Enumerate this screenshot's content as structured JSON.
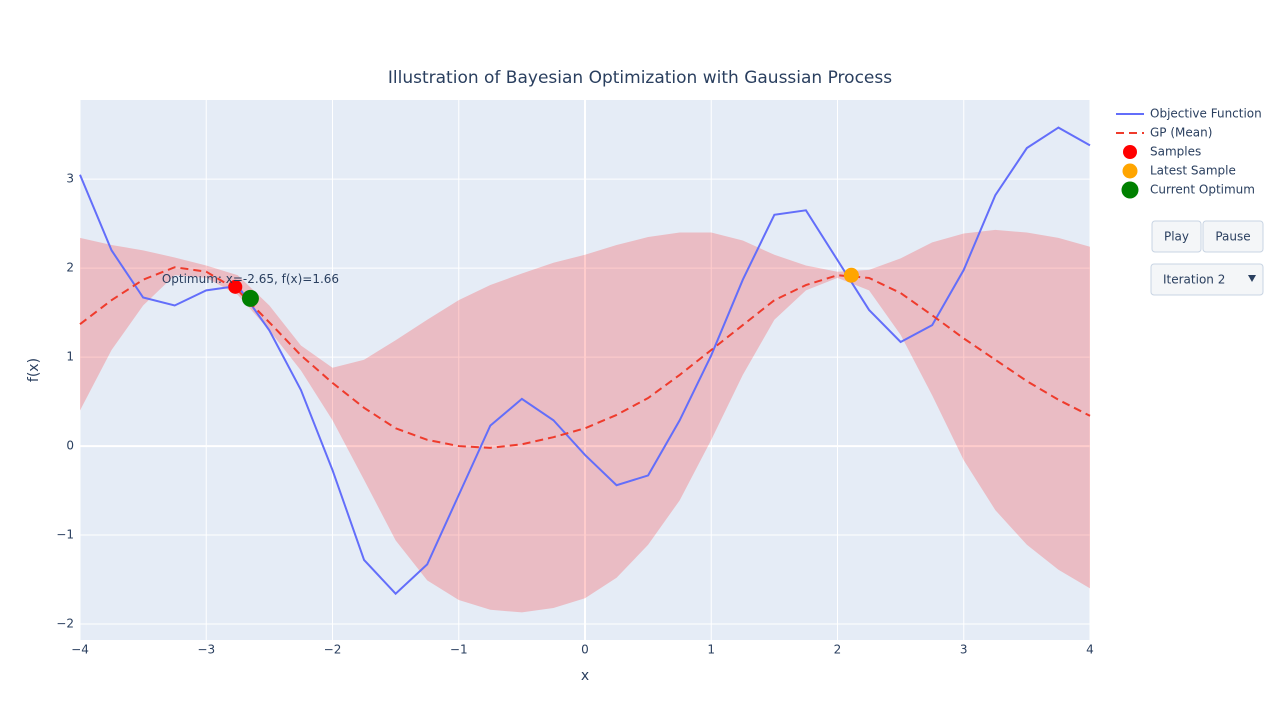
{
  "chart_data": {
    "type": "line",
    "title": "Illustration of Bayesian Optimization with Gaussian Process",
    "x_label": "x",
    "y_label": "f(x)",
    "x": [
      -4,
      -3.75,
      -3.5,
      -3.25,
      -3,
      -2.75,
      -2.5,
      -2.25,
      -2,
      -1.75,
      -1.5,
      -1.25,
      -1,
      -0.75,
      -0.5,
      -0.25,
      0,
      0.25,
      0.5,
      0.75,
      1,
      1.25,
      1.5,
      1.75,
      2,
      2.25,
      2.5,
      2.75,
      3,
      3.25,
      3.5,
      3.75,
      4
    ],
    "xlim": [
      -4,
      4
    ],
    "ylim": [
      -2.18,
      3.89
    ],
    "xticks": [
      {
        "value": -4,
        "label": "−4"
      },
      {
        "value": -3,
        "label": "−3"
      },
      {
        "value": -2,
        "label": "−2"
      },
      {
        "value": -1,
        "label": "−1"
      },
      0,
      1,
      2,
      3,
      4
    ],
    "yticks": [
      {
        "value": -2,
        "label": "−2"
      },
      {
        "value": -1,
        "label": "−1"
      },
      0,
      1,
      2,
      3
    ],
    "grid": true,
    "legend": "right",
    "band": {
      "color": "rgba(255,0,0,0.2)",
      "upper": [
        2.34,
        2.26,
        2.2,
        2.12,
        2.03,
        1.92,
        1.58,
        1.13,
        0.88,
        0.97,
        1.19,
        1.42,
        1.64,
        1.81,
        1.94,
        2.06,
        2.15,
        2.26,
        2.35,
        2.4,
        2.4,
        2.31,
        2.15,
        2.03,
        1.96,
        1.98,
        2.11,
        2.29,
        2.39,
        2.43,
        2.4,
        2.34,
        2.24
      ],
      "lower": [
        0.4,
        1.08,
        1.58,
        1.92,
        1.89,
        1.7,
        1.3,
        0.85,
        0.29,
        -0.38,
        -1.06,
        -1.51,
        -1.73,
        -1.84,
        -1.87,
        -1.82,
        -1.71,
        -1.48,
        -1.11,
        -0.61,
        0.07,
        0.8,
        1.42,
        1.75,
        1.89,
        1.75,
        1.25,
        0.57,
        -0.16,
        -0.72,
        -1.11,
        -1.39,
        -1.6
      ]
    },
    "series": [
      {
        "name": "Objective Function",
        "color": "#636efa",
        "dash": "solid",
        "values": [
          3.05,
          2.2,
          1.67,
          1.58,
          1.75,
          1.8,
          1.3,
          0.63,
          -0.27,
          -1.28,
          -1.66,
          -1.33,
          -0.55,
          0.23,
          0.53,
          0.29,
          -0.1,
          -0.44,
          -0.33,
          0.29,
          1.02,
          1.87,
          2.6,
          2.65,
          2.09,
          1.53,
          1.17,
          1.36,
          1.98,
          2.82,
          3.35,
          3.58,
          3.38
        ]
      },
      {
        "name": "GP (Mean)",
        "color": "#ef3b2c",
        "dash": "dash",
        "values": [
          1.37,
          1.64,
          1.87,
          2.01,
          1.96,
          1.75,
          1.39,
          1.02,
          0.71,
          0.43,
          0.2,
          0.07,
          0.0,
          -0.02,
          0.02,
          0.1,
          0.2,
          0.35,
          0.54,
          0.8,
          1.08,
          1.36,
          1.64,
          1.81,
          1.92,
          1.89,
          1.72,
          1.47,
          1.21,
          0.97,
          0.73,
          0.52,
          0.34
        ]
      }
    ],
    "points": [
      {
        "name": "Samples",
        "color": "red",
        "size": 7,
        "x": [
          -2.77
        ],
        "values": [
          1.79
        ]
      },
      {
        "name": "Latest Sample",
        "color": "orange",
        "size": 7.5,
        "x": [
          2.11
        ],
        "values": [
          1.92
        ]
      },
      {
        "name": "Current Optimum",
        "color": "green",
        "size": 8.5,
        "x": [
          -2.65
        ],
        "values": [
          1.66
        ]
      }
    ],
    "annotation": "Optimum: x=-2.65, f(x)=1.66"
  },
  "controls": {
    "buttons": [
      "Play",
      "Pause"
    ],
    "dropdown": "Iteration 2"
  }
}
